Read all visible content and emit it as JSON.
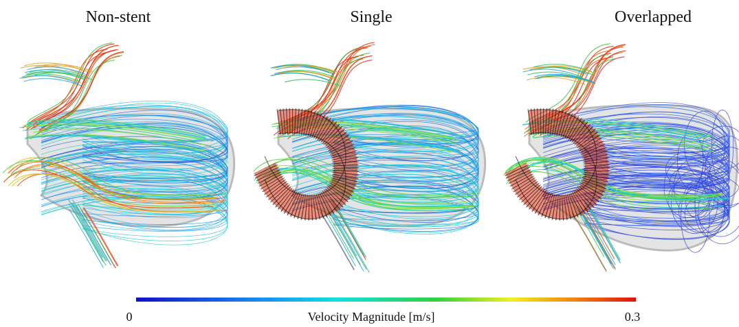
{
  "panels": [
    {
      "title": "Non-stent"
    },
    {
      "title": "Single"
    },
    {
      "title": "Overlapped"
    }
  ],
  "colorbar": {
    "label": "Velocity Magnitude [m/s]",
    "min": 0,
    "max": 0.3
  }
}
